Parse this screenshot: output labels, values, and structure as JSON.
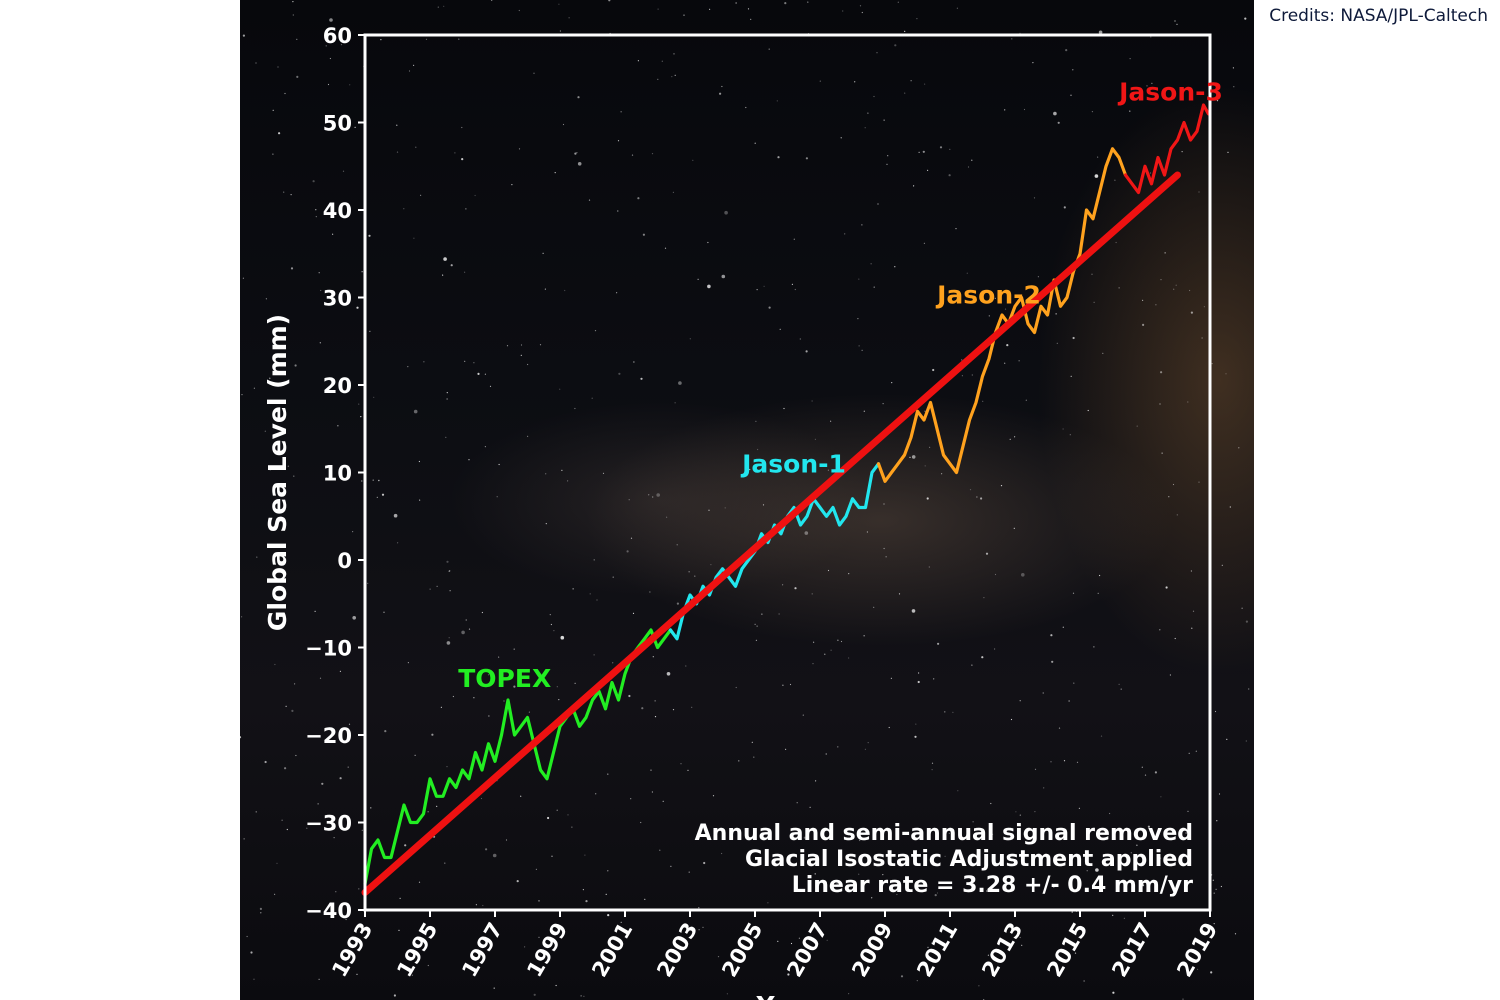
{
  "credits": "Credits: NASA/JPL-Caltech",
  "chart_data": {
    "type": "line",
    "title": "",
    "xlabel": "Year",
    "ylabel": "Global Sea Level (mm)",
    "xlim": [
      1993,
      2019
    ],
    "ylim": [
      -40,
      60
    ],
    "xticks": [
      1993,
      1995,
      1997,
      1999,
      2001,
      2003,
      2005,
      2007,
      2009,
      2011,
      2013,
      2015,
      2017,
      2019
    ],
    "yticks": [
      -40,
      -30,
      -20,
      -10,
      0,
      10,
      20,
      30,
      40,
      50,
      60
    ],
    "ytick_labels": [
      "−40",
      "−30",
      "−20",
      "−10",
      "0",
      "10",
      "20",
      "30",
      "40",
      "50",
      "60"
    ],
    "grid": false,
    "background": "starfield",
    "series": [
      {
        "name": "TOPEX",
        "color": "#22ee22",
        "x": [
          1993.0,
          1993.2,
          1993.4,
          1993.6,
          1993.8,
          1994.0,
          1994.2,
          1994.4,
          1994.6,
          1994.8,
          1995.0,
          1995.2,
          1995.4,
          1995.6,
          1995.8,
          1996.0,
          1996.2,
          1996.4,
          1996.6,
          1996.8,
          1997.0,
          1997.2,
          1997.4,
          1997.6,
          1997.8,
          1998.0,
          1998.2,
          1998.4,
          1998.6,
          1998.8,
          1999.0,
          1999.2,
          1999.4,
          1999.6,
          1999.8,
          2000.0,
          2000.2,
          2000.4,
          2000.6,
          2000.8,
          2001.0,
          2001.2,
          2001.4,
          2001.6,
          2001.8,
          2002.0,
          2002.2,
          2002.4
        ],
        "y": [
          -37,
          -33,
          -32,
          -34,
          -34,
          -31,
          -28,
          -30,
          -30,
          -29,
          -25,
          -27,
          -27,
          -25,
          -26,
          -24,
          -25,
          -22,
          -24,
          -21,
          -23,
          -20,
          -16,
          -20,
          -19,
          -18,
          -21,
          -24,
          -25,
          -22,
          -19,
          -18,
          -17,
          -19,
          -18,
          -16,
          -15,
          -17,
          -14,
          -16,
          -13,
          -11,
          -10,
          -9,
          -8,
          -10,
          -9,
          -8
        ]
      },
      {
        "name": "Jason-1",
        "color": "#22e6ee",
        "x": [
          2002.4,
          2002.6,
          2002.8,
          2003.0,
          2003.2,
          2003.4,
          2003.6,
          2003.8,
          2004.0,
          2004.2,
          2004.4,
          2004.6,
          2004.8,
          2005.0,
          2005.2,
          2005.4,
          2005.6,
          2005.8,
          2006.0,
          2006.2,
          2006.4,
          2006.6,
          2006.8,
          2007.0,
          2007.2,
          2007.4,
          2007.6,
          2007.8,
          2008.0,
          2008.2,
          2008.4,
          2008.6,
          2008.8
        ],
        "y": [
          -8,
          -9,
          -6,
          -4,
          -5,
          -3,
          -4,
          -2,
          -1,
          -2,
          -3,
          -1,
          0,
          1,
          3,
          2,
          4,
          3,
          5,
          6,
          4,
          5,
          7,
          6,
          5,
          6,
          4,
          5,
          7,
          6,
          6,
          10,
          11
        ]
      },
      {
        "name": "Jason-2",
        "color": "#ffa21e",
        "x": [
          2008.8,
          2009.0,
          2009.2,
          2009.4,
          2009.6,
          2009.8,
          2010.0,
          2010.2,
          2010.4,
          2010.6,
          2010.8,
          2011.0,
          2011.2,
          2011.4,
          2011.6,
          2011.8,
          2012.0,
          2012.2,
          2012.4,
          2012.6,
          2012.8,
          2013.0,
          2013.2,
          2013.4,
          2013.6,
          2013.8,
          2014.0,
          2014.2,
          2014.4,
          2014.6,
          2014.8,
          2015.0,
          2015.2,
          2015.4,
          2015.6,
          2015.8,
          2016.0,
          2016.2,
          2016.4
        ],
        "y": [
          11,
          9,
          10,
          11,
          12,
          14,
          17,
          16,
          18,
          15,
          12,
          11,
          10,
          13,
          16,
          18,
          21,
          23,
          26,
          28,
          27,
          29,
          30,
          27,
          26,
          29,
          28,
          32,
          29,
          30,
          33,
          35,
          40,
          39,
          42,
          45,
          47,
          46,
          44
        ]
      },
      {
        "name": "Jason-3",
        "color": "#f01616",
        "x": [
          2016.4,
          2016.6,
          2016.8,
          2017.0,
          2017.2,
          2017.4,
          2017.6,
          2017.8,
          2018.0,
          2018.2,
          2018.4,
          2018.6,
          2018.8,
          2018.95
        ],
        "y": [
          44,
          43,
          42,
          45,
          43,
          46,
          44,
          47,
          48,
          50,
          48,
          49,
          52,
          51
        ]
      }
    ],
    "trend": {
      "name": "Linear rate",
      "color": "#ee1111",
      "x": [
        1993.0,
        2018.0
      ],
      "y": [
        -38,
        44
      ]
    },
    "series_labels": [
      {
        "text": "TOPEX",
        "color": "#22ee22",
        "x": 1997.3,
        "y": -14.5
      },
      {
        "text": "Jason-1",
        "color": "#22e6ee",
        "x": 2006.2,
        "y": 10.0
      },
      {
        "text": "Jason-2",
        "color": "#ffa21e",
        "x": 2012.2,
        "y": 29.3
      },
      {
        "text": "Jason-3",
        "color": "#f01616",
        "x": 2017.8,
        "y": 52.5
      }
    ],
    "annotations": [
      "Annual and semi-annual signal removed",
      "Glacial Isostatic Adjustment applied",
      "Linear rate =  3.28 +/- 0.4 mm/yr"
    ]
  }
}
